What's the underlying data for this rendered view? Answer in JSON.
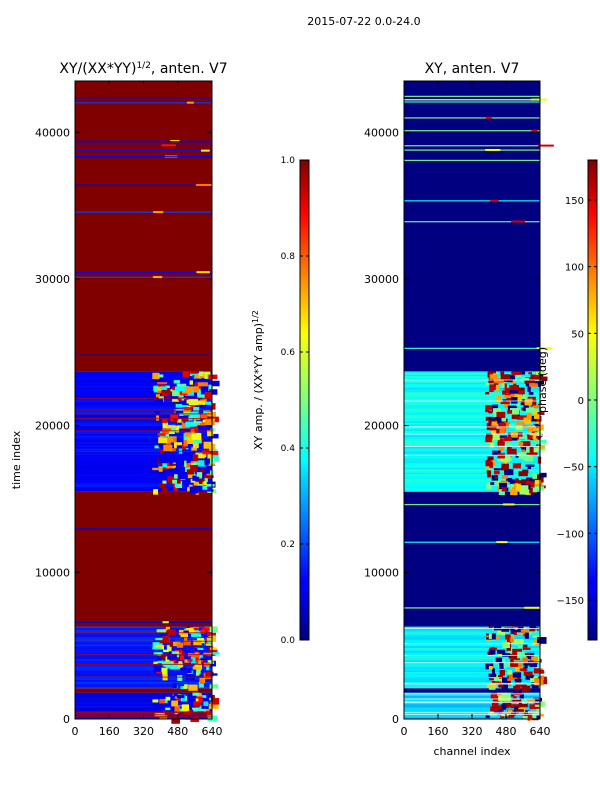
{
  "figure": {
    "suptitle": "2015-07-22 0.0-24.0"
  },
  "chart_data": [
    {
      "type": "heatmap",
      "id": "left",
      "title": "XY/(XX*YY)",
      "title_exponent": "1/2",
      "title_suffix": ", anten. V7",
      "xlabel": "",
      "ylabel": "time index",
      "xlim": [
        0,
        640
      ],
      "ylim": [
        0,
        43500
      ],
      "xticks": [
        0,
        160,
        320,
        480,
        640
      ],
      "yticks": [
        0,
        10000,
        20000,
        30000,
        40000
      ],
      "colorbar": {
        "label": "XY amp. / (XX*YY amp)",
        "label_exponent": "1/2",
        "min": 0.0,
        "max": 1.0,
        "ticks": [
          "0.0",
          "0.2",
          "0.4",
          "0.6",
          "0.8",
          "1.0"
        ],
        "colormap": "jet"
      },
      "bands": [
        {
          "t0": 0,
          "t1": 1800,
          "kind": "noisy",
          "base": 0.1
        },
        {
          "t0": 1800,
          "t1": 2100,
          "kind": "flat",
          "base": 1.0
        },
        {
          "t0": 2100,
          "t1": 6300,
          "kind": "noisy",
          "base": 0.15
        },
        {
          "t0": 6300,
          "t1": 15500,
          "kind": "flat",
          "base": 1.0
        },
        {
          "t0": 15500,
          "t1": 23700,
          "kind": "noisy",
          "base": 0.12
        },
        {
          "t0": 23700,
          "t1": 43500,
          "kind": "flat",
          "base": 1.0
        }
      ],
      "anomaly_channels": [
        360,
        640
      ],
      "note": "Blue low-coherence bands with bright structure in channels ~360-640; dark-red (1.0) in the time ranges shown as flat bands."
    },
    {
      "type": "heatmap",
      "id": "right",
      "title": "XY, anten. V7",
      "xlabel": "channel index",
      "ylabel": "",
      "xlim": [
        0,
        640
      ],
      "ylim": [
        0,
        43500
      ],
      "xticks": [
        0,
        160,
        320,
        480,
        640
      ],
      "yticks": [
        0,
        10000,
        20000,
        30000,
        40000
      ],
      "colorbar": {
        "label": "phase (deg)",
        "min": -180,
        "max": 180,
        "ticks": [
          "−150",
          "−100",
          "−50",
          "0",
          "50",
          "100",
          "150"
        ],
        "tick_values": [
          -150,
          -100,
          -50,
          0,
          50,
          100,
          150
        ],
        "colormap": "jet"
      },
      "bands": [
        {
          "t0": 0,
          "t1": 1800,
          "kind": "noisy",
          "base": -60
        },
        {
          "t0": 1800,
          "t1": 2100,
          "kind": "flat",
          "base": -180
        },
        {
          "t0": 2100,
          "t1": 6300,
          "kind": "noisy",
          "base": -50
        },
        {
          "t0": 6300,
          "t1": 15500,
          "kind": "flat",
          "base": -180
        },
        {
          "t0": 15500,
          "t1": 23700,
          "kind": "noisy",
          "base": -40
        },
        {
          "t0": 23700,
          "t1": 43500,
          "kind": "flat",
          "base": -180
        }
      ],
      "anomaly_channels": [
        380,
        640
      ],
      "note": "Dark blue phase over most of the plot; cyan/green noisy phase bands with red/yellow structure in channels ~380-640."
    }
  ]
}
